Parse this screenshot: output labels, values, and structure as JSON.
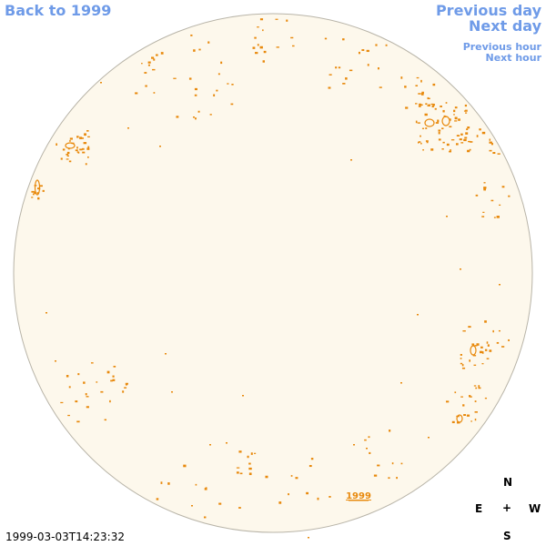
{
  "nav": {
    "back_label": "Back to 1999",
    "previous_day_label": "Previous day",
    "next_day_label": "Next day",
    "previous_hour_label": "Previous hour",
    "next_hour_label": "Next hour"
  },
  "disk": {
    "fill_color": "#fdf8ec",
    "edge_color": "#b8b4a8",
    "mark_color": "#e8890c",
    "year_label": "1999"
  },
  "timestamp": "1999-03-03T14:23:32",
  "compass": {
    "north": "N",
    "east": "E",
    "center": "+",
    "west": "W",
    "south": "S"
  }
}
